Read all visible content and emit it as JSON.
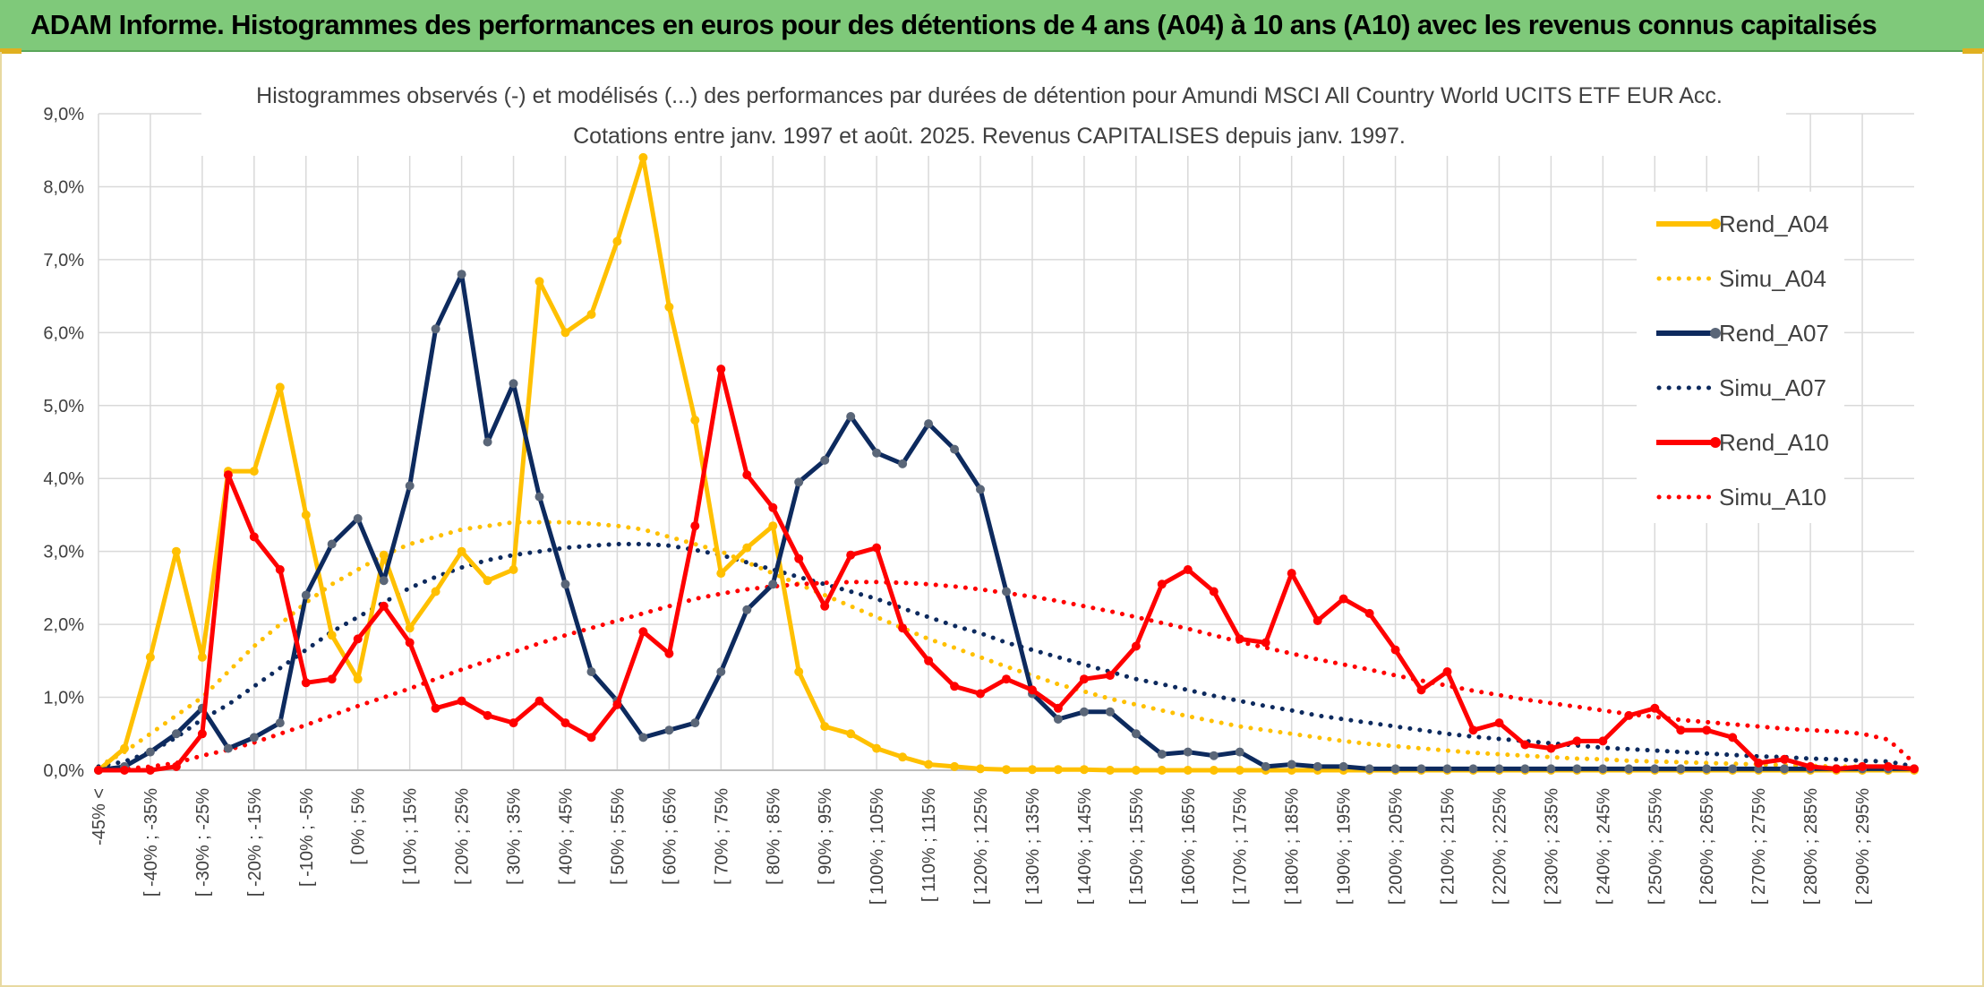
{
  "banner": {
    "title": "ADAM Informe. Histogrammes des performances en euros pour des détentions de 4 ans (A04) à 10 ans (A10) avec les revenus connus capitalisés"
  },
  "chart_data": {
    "type": "line",
    "title": "Histogrammes observés (-) et modélisés (...) des performances par durées de détention pour Amundi MSCI All Country World UCITS ETF EUR Acc.",
    "subtitle": "Cotations entre janv. 1997 et août. 2025. Revenus CAPITALISES depuis janv. 1997.",
    "ylim": [
      0,
      9
    ],
    "yticks": [
      "0,0%",
      "1,0%",
      "2,0%",
      "3,0%",
      "4,0%",
      "5,0%",
      "6,0%",
      "7,0%",
      "8,0%",
      "9,0%"
    ],
    "grid": true,
    "legend_position": "right",
    "x_labels": [
      "-45% <",
      "[ -40% ; -35%",
      "[ -30% ; -25%",
      "[ -20% ; -15%",
      "[ -10% ; -5%",
      "[ 0% ; 5%",
      "[ 10% ; 15%",
      "[ 20% ; 25%",
      "[ 30% ; 35%",
      "[ 40% ; 45%",
      "[ 50% ; 55%",
      "[ 60% ; 65%",
      "[ 70% ; 75%",
      "[ 80% ; 85%",
      "[ 90% ; 95%",
      "[ 100% ; 105%",
      "[ 110% ; 115%",
      "[ 120% ; 125%",
      "[ 130% ; 135%",
      "[ 140% ; 145%",
      "[ 150% ; 155%",
      "[ 160% ; 165%",
      "[ 170% ; 175%",
      "[ 180% ; 185%",
      "[ 190% ; 195%",
      "[ 200% ; 205%",
      "[ 210% ; 215%",
      "[ 220% ; 225%",
      "[ 230% ; 235%",
      "[ 240% ; 245%",
      "[ 250% ; 255%",
      "[ 260% ; 265%",
      "[ 270% ; 275%",
      "[ 280% ; 285%",
      "[ 290% ; 295%"
    ],
    "series": [
      {
        "name": "Rend_A04",
        "style": "solid",
        "color": "#ffc000",
        "values": [
          0.0,
          0.3,
          1.55,
          3.0,
          1.55,
          4.1,
          4.1,
          5.25,
          3.5,
          1.85,
          1.25,
          2.95,
          1.95,
          2.45,
          3.0,
          2.6,
          2.75,
          6.7,
          6.0,
          6.25,
          7.25,
          8.4,
          6.35,
          4.8,
          2.7,
          3.05,
          3.35,
          1.35,
          0.6,
          0.5,
          0.3,
          0.18,
          0.08,
          0.05,
          0.02,
          0.01,
          0.01,
          0.01,
          0.01,
          0.0,
          0.0,
          0.0,
          0.0,
          0.0,
          0.0,
          0.0,
          0.0,
          0.0,
          0.0,
          0.0,
          0.0,
          0.0,
          0.0,
          0.0,
          0.0,
          0.0,
          0.0,
          0.0,
          0.0,
          0.0,
          0.0,
          0.0,
          0.0,
          0.0,
          0.0,
          0.0,
          0.0,
          0.0,
          0.0,
          0.0,
          0.0
        ]
      },
      {
        "name": "Simu_A04",
        "style": "dotted",
        "color": "#ffc000",
        "values": [
          0.05,
          0.25,
          0.5,
          0.75,
          1.0,
          1.35,
          1.7,
          2.0,
          2.3,
          2.55,
          2.75,
          2.95,
          3.1,
          3.2,
          3.3,
          3.35,
          3.4,
          3.4,
          3.4,
          3.38,
          3.35,
          3.3,
          3.2,
          3.1,
          3.0,
          2.85,
          2.7,
          2.55,
          2.4,
          2.25,
          2.1,
          1.95,
          1.8,
          1.68,
          1.55,
          1.42,
          1.3,
          1.18,
          1.08,
          0.98,
          0.9,
          0.82,
          0.74,
          0.67,
          0.6,
          0.55,
          0.5,
          0.45,
          0.4,
          0.36,
          0.33,
          0.3,
          0.27,
          0.24,
          0.22,
          0.2,
          0.18,
          0.16,
          0.15,
          0.13,
          0.12,
          0.11,
          0.1,
          0.09,
          0.08,
          0.07,
          0.06,
          0.05,
          0.05,
          0.04,
          0.03
        ]
      },
      {
        "name": "Rend_A07",
        "style": "solid",
        "color": "#0d2a5e",
        "values": [
          0.0,
          0.05,
          0.25,
          0.5,
          0.85,
          0.3,
          0.45,
          0.65,
          2.4,
          3.1,
          3.45,
          2.6,
          3.9,
          6.05,
          6.8,
          4.5,
          5.3,
          3.75,
          2.55,
          1.35,
          0.95,
          0.45,
          0.55,
          0.65,
          1.35,
          2.2,
          2.55,
          3.95,
          4.25,
          4.85,
          4.35,
          4.2,
          4.75,
          4.4,
          3.85,
          2.45,
          1.05,
          0.7,
          0.8,
          0.8,
          0.5,
          0.22,
          0.25,
          0.2,
          0.25,
          0.05,
          0.08,
          0.05,
          0.05,
          0.02,
          0.02,
          0.02,
          0.02,
          0.02,
          0.02,
          0.02,
          0.02,
          0.02,
          0.02,
          0.02,
          0.02,
          0.02,
          0.02,
          0.02,
          0.02,
          0.02,
          0.02,
          0.02,
          0.02,
          0.02,
          0.02
        ]
      },
      {
        "name": "Simu_A07",
        "style": "dotted",
        "color": "#0d2a5e",
        "values": [
          0.05,
          0.12,
          0.25,
          0.45,
          0.7,
          0.9,
          1.15,
          1.4,
          1.65,
          1.9,
          2.1,
          2.3,
          2.5,
          2.65,
          2.78,
          2.88,
          2.95,
          3.0,
          3.05,
          3.08,
          3.1,
          3.1,
          3.08,
          3.02,
          2.95,
          2.85,
          2.75,
          2.65,
          2.55,
          2.45,
          2.35,
          2.22,
          2.1,
          1.98,
          1.88,
          1.75,
          1.65,
          1.55,
          1.45,
          1.35,
          1.25,
          1.18,
          1.1,
          1.02,
          0.95,
          0.88,
          0.82,
          0.75,
          0.7,
          0.65,
          0.6,
          0.55,
          0.5,
          0.46,
          0.43,
          0.4,
          0.37,
          0.34,
          0.31,
          0.29,
          0.27,
          0.25,
          0.23,
          0.21,
          0.19,
          0.18,
          0.16,
          0.15,
          0.13,
          0.12,
          0.05
        ]
      },
      {
        "name": "Rend_A10",
        "style": "solid",
        "color": "#ff0000",
        "values": [
          0.0,
          0.0,
          0.0,
          0.05,
          0.5,
          4.05,
          3.2,
          2.75,
          1.2,
          1.25,
          1.8,
          2.25,
          1.75,
          0.85,
          0.95,
          0.75,
          0.65,
          0.95,
          0.65,
          0.45,
          0.9,
          1.9,
          1.6,
          3.35,
          5.5,
          4.05,
          3.6,
          2.9,
          2.25,
          2.95,
          3.05,
          1.95,
          1.5,
          1.15,
          1.05,
          1.25,
          1.1,
          0.85,
          1.25,
          1.3,
          1.7,
          2.55,
          2.75,
          2.45,
          1.8,
          1.75,
          2.7,
          2.05,
          2.35,
          2.15,
          1.65,
          1.1,
          1.35,
          0.55,
          0.65,
          0.35,
          0.3,
          0.4,
          0.4,
          0.75,
          0.85,
          0.55,
          0.55,
          0.45,
          0.1,
          0.15,
          0.05,
          0.02,
          0.05,
          0.05,
          0.02
        ]
      },
      {
        "name": "Simu_A10",
        "style": "dotted",
        "color": "#ff0000",
        "values": [
          0.0,
          0.02,
          0.05,
          0.1,
          0.2,
          0.28,
          0.38,
          0.5,
          0.62,
          0.75,
          0.88,
          1.0,
          1.12,
          1.25,
          1.38,
          1.5,
          1.62,
          1.74,
          1.85,
          1.95,
          2.05,
          2.15,
          2.25,
          2.35,
          2.42,
          2.48,
          2.52,
          2.55,
          2.57,
          2.58,
          2.58,
          2.57,
          2.55,
          2.52,
          2.48,
          2.43,
          2.38,
          2.32,
          2.25,
          2.18,
          2.1,
          2.02,
          1.94,
          1.85,
          1.76,
          1.68,
          1.6,
          1.52,
          1.45,
          1.38,
          1.3,
          1.23,
          1.16,
          1.09,
          1.03,
          0.97,
          0.92,
          0.87,
          0.82,
          0.77,
          0.73,
          0.69,
          0.66,
          0.63,
          0.6,
          0.57,
          0.55,
          0.53,
          0.5,
          0.42,
          0.1
        ]
      }
    ]
  }
}
